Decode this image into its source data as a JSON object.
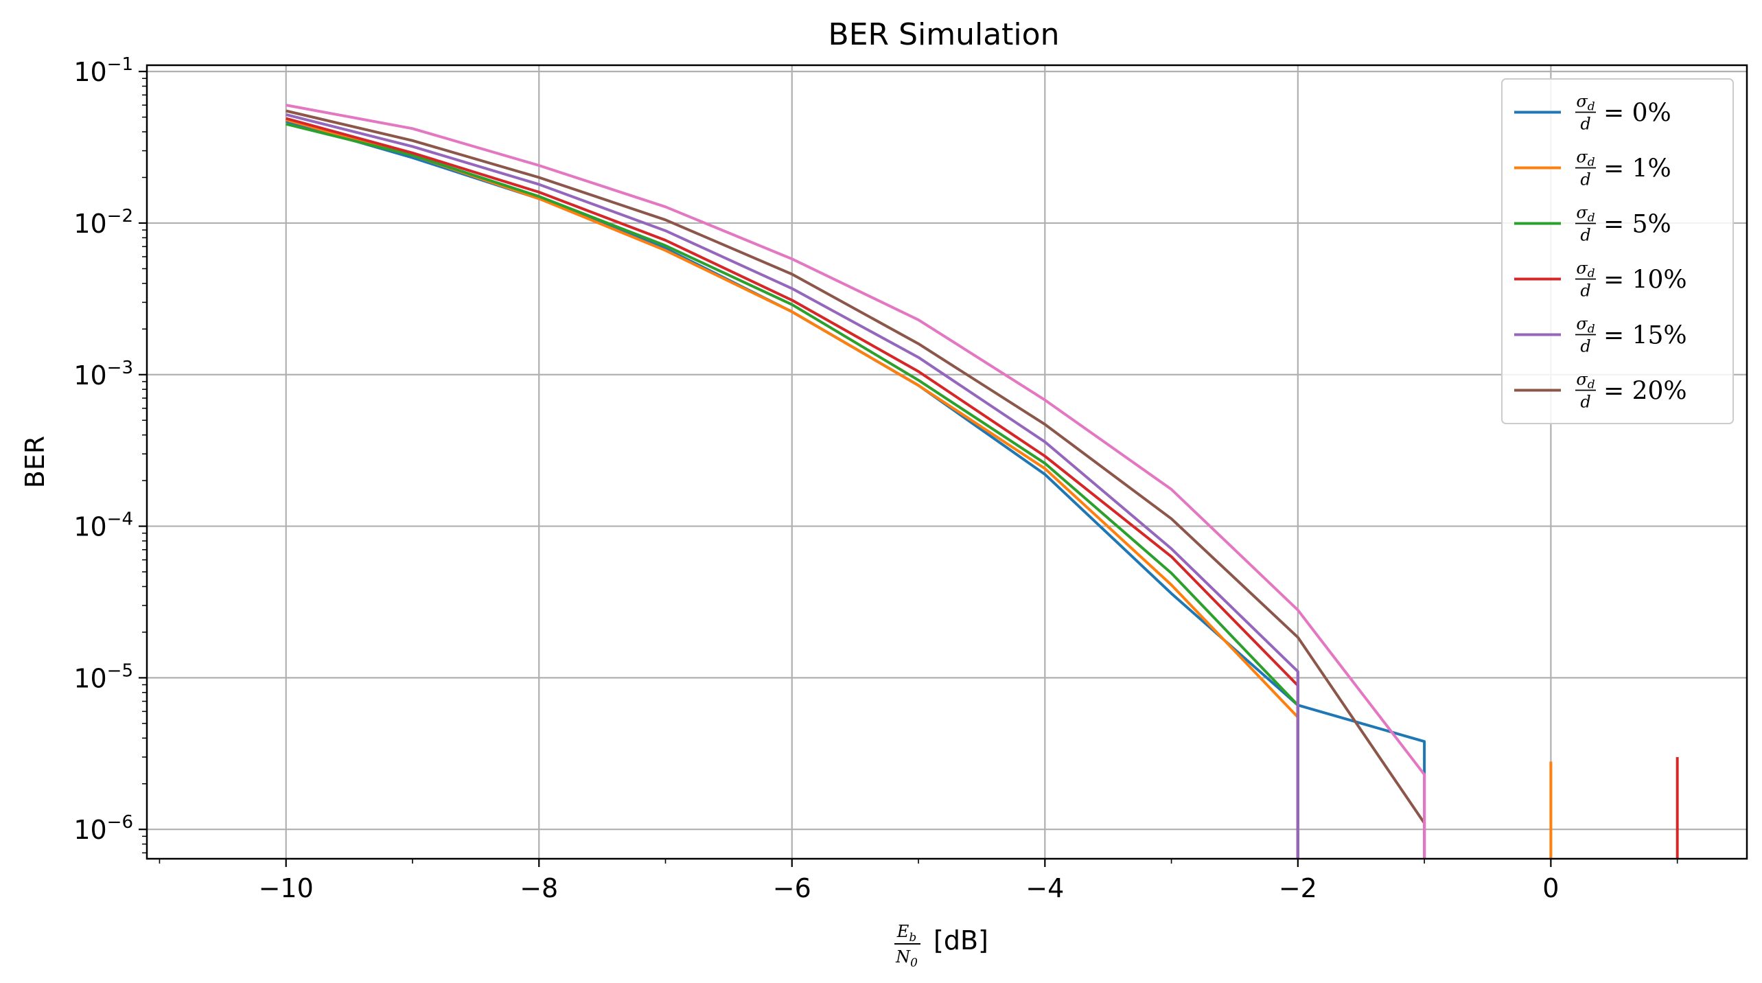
{
  "chart_data": {
    "type": "line",
    "title": "BER Simulation",
    "ylabel": "BER",
    "xlabel": {
      "num_base": "E",
      "num_sub": "b",
      "den_base": "N",
      "den_sub": "0",
      "unit": "[dB]"
    },
    "xlim": [
      -11.1,
      1.55
    ],
    "ylim": [
      6.4e-07,
      0.11
    ],
    "yscale": "log",
    "grid": true,
    "legend_position": "top-right",
    "x_ticks": [
      -10,
      -8,
      -6,
      -4,
      -2,
      0
    ],
    "x_tick_labels": [
      "−10",
      "−8",
      "−6",
      "−4",
      "−2",
      "0"
    ],
    "y_ticks": [
      0.1,
      0.01,
      0.001,
      0.0001,
      1e-05,
      1e-06
    ],
    "y_tick_labels": [
      {
        "base": "10",
        "exp": "−1"
      },
      {
        "base": "10",
        "exp": "−2"
      },
      {
        "base": "10",
        "exp": "−3"
      },
      {
        "base": "10",
        "exp": "−4"
      },
      {
        "base": "10",
        "exp": "−5"
      },
      {
        "base": "10",
        "exp": "−6"
      }
    ],
    "legend_prefix": {
      "num_base": "σ",
      "num_sub": "d",
      "den": "d"
    },
    "series": [
      {
        "name": "= 0%",
        "color": "#1f77b4",
        "in_legend": true,
        "points": [
          [
            -10,
            0.047
          ],
          [
            -9,
            0.027
          ],
          [
            -8,
            0.0145
          ],
          [
            -7,
            0.0068
          ],
          [
            -6,
            0.0026
          ],
          [
            -5,
            0.00085
          ],
          [
            -4,
            0.00022
          ],
          [
            -3,
            3.6e-05
          ],
          [
            -2,
            6.6e-06
          ],
          [
            -1,
            3.8e-06
          ],
          [
            -1,
            2.2e-06
          ]
        ]
      },
      {
        "name": "= 1%",
        "color": "#ff7f0e",
        "in_legend": true,
        "points": [
          [
            -10,
            0.048
          ],
          [
            -9,
            0.028
          ],
          [
            -8,
            0.0145
          ],
          [
            -7,
            0.0066
          ],
          [
            -6,
            0.0026
          ],
          [
            -5,
            0.00085
          ],
          [
            -4,
            0.00024
          ],
          [
            -3,
            4.1e-05
          ],
          [
            -2,
            5.5e-06
          ]
        ],
        "spikes": [
          [
            0,
            2.8e-06
          ]
        ]
      },
      {
        "name": "= 5%",
        "color": "#2ca02c",
        "in_legend": true,
        "points": [
          [
            -10,
            0.045
          ],
          [
            -9,
            0.028
          ],
          [
            -8,
            0.015
          ],
          [
            -7,
            0.0071
          ],
          [
            -6,
            0.0029
          ],
          [
            -5,
            0.00092
          ],
          [
            -4,
            0.00026
          ],
          [
            -3,
            4.9e-05
          ],
          [
            -2,
            6.6e-06
          ]
        ]
      },
      {
        "name": "= 10%",
        "color": "#d62728",
        "in_legend": true,
        "points": [
          [
            -10,
            0.049
          ],
          [
            -9,
            0.029
          ],
          [
            -8,
            0.016
          ],
          [
            -7,
            0.0077
          ],
          [
            -6,
            0.0031
          ],
          [
            -5,
            0.00105
          ],
          [
            -4,
            0.00029
          ],
          [
            -3,
            6.3e-05
          ],
          [
            -2,
            8.9e-06
          ]
        ],
        "spikes": [
          [
            1,
            3e-06
          ]
        ]
      },
      {
        "name": "= 15%",
        "color": "#9467bd",
        "in_legend": true,
        "points": [
          [
            -10,
            0.052
          ],
          [
            -9,
            0.032
          ],
          [
            -8,
            0.018
          ],
          [
            -7,
            0.0089
          ],
          [
            -6,
            0.0037
          ],
          [
            -5,
            0.0013
          ],
          [
            -4,
            0.00036
          ],
          [
            -3,
            7.1e-05
          ],
          [
            -2,
            1.1e-05
          ]
        ],
        "spikes": [
          [
            -2,
            1.1e-05
          ]
        ]
      },
      {
        "name": "= 20%",
        "color": "#8c564b",
        "in_legend": true,
        "points": [
          [
            -10,
            0.055
          ],
          [
            -9,
            0.035
          ],
          [
            -8,
            0.02
          ],
          [
            -7,
            0.0105
          ],
          [
            -6,
            0.0046
          ],
          [
            -5,
            0.0016
          ],
          [
            -4,
            0.00047
          ],
          [
            -3,
            0.000112
          ],
          [
            -2,
            1.85e-05
          ],
          [
            -1,
            1.1e-06
          ]
        ]
      },
      {
        "name": "",
        "color": "#e377c2",
        "in_legend": false,
        "points": [
          [
            -10,
            0.06
          ],
          [
            -9,
            0.042
          ],
          [
            -8,
            0.024
          ],
          [
            -7,
            0.0128
          ],
          [
            -6,
            0.0058
          ],
          [
            -5,
            0.0023
          ],
          [
            -4,
            0.00068
          ],
          [
            -3,
            0.000175
          ],
          [
            -2,
            2.8e-05
          ],
          [
            -1,
            2.3e-06
          ]
        ],
        "spikes": [
          [
            -1,
            2.3e-06
          ]
        ]
      }
    ]
  }
}
